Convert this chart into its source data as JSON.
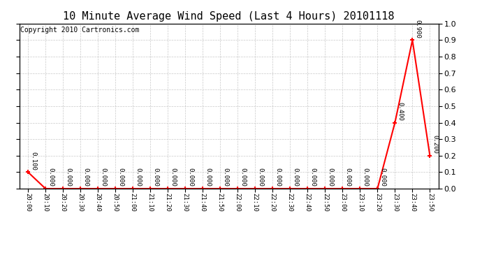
{
  "title": "10 Minute Average Wind Speed (Last 4 Hours) 20101118",
  "copyright": "Copyright 2010 Cartronics.com",
  "x_labels": [
    "20:00",
    "20:10",
    "20:20",
    "20:30",
    "20:40",
    "20:50",
    "21:00",
    "21:10",
    "21:20",
    "21:30",
    "21:40",
    "21:50",
    "22:00",
    "22:10",
    "22:20",
    "22:30",
    "22:40",
    "22:50",
    "23:00",
    "23:10",
    "23:20",
    "23:30",
    "23:40",
    "23:50"
  ],
  "y_values": [
    0.1,
    0.0,
    0.0,
    0.0,
    0.0,
    0.0,
    0.0,
    0.0,
    0.0,
    0.0,
    0.0,
    0.0,
    0.0,
    0.0,
    0.0,
    0.0,
    0.0,
    0.0,
    0.0,
    0.0,
    0.0,
    0.4,
    0.9,
    0.2
  ],
  "line_color": "#ff0000",
  "marker_color": "#ff0000",
  "bg_color": "#ffffff",
  "grid_color": "#bbbbbb",
  "title_fontsize": 11,
  "copyright_fontsize": 7,
  "ylim": [
    0.0,
    1.0
  ],
  "annotation_fontsize": 6.5
}
